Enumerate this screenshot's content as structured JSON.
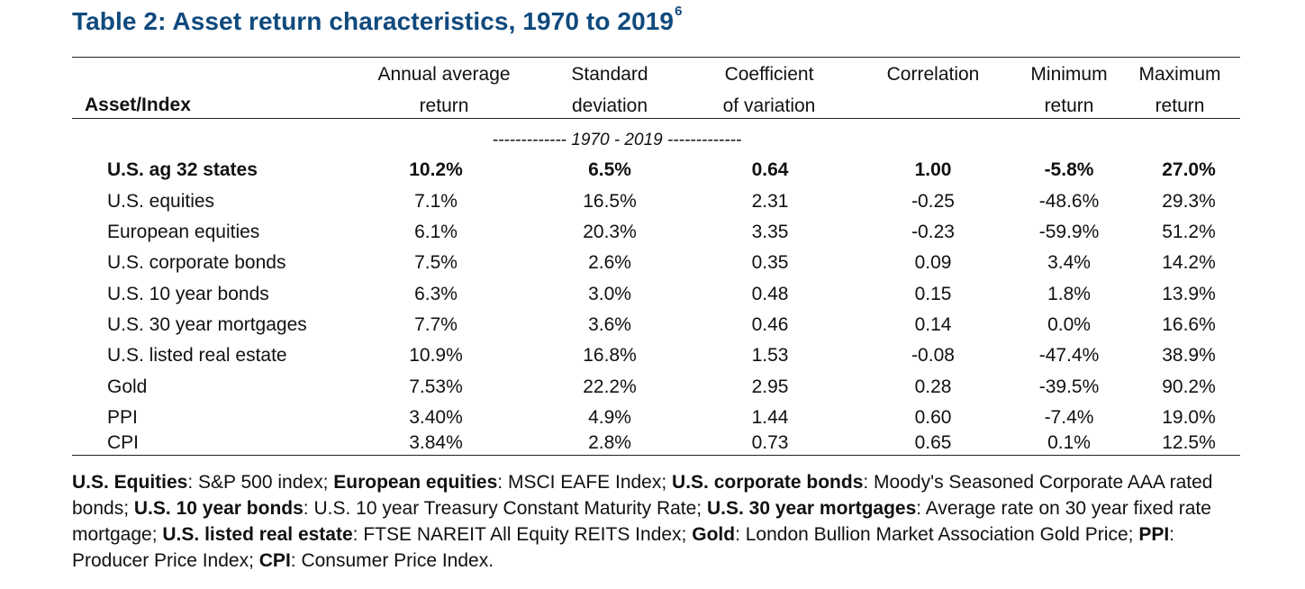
{
  "title": {
    "text": "Table 2: Asset return characteristics, 1970 to 2019",
    "footnote_mark": "6",
    "color": "#0f4a7d"
  },
  "header": {
    "asset": "Asset/Index",
    "columns": [
      {
        "line1": "Annual average",
        "line2": "return"
      },
      {
        "line1": "Standard",
        "line2": "deviation"
      },
      {
        "line1": "Coefficient",
        "line2": "of variation"
      },
      {
        "line1": "",
        "line2": "Correlation"
      },
      {
        "line1": "Minimum",
        "line2": "return"
      },
      {
        "line1": "Maximum",
        "line2": "return"
      }
    ]
  },
  "period_label": "------------- 1970 - 2019 -------------",
  "rows": [
    {
      "name": "U.S. ag 32 states",
      "values": [
        "10.2%",
        "6.5%",
        "0.64",
        "1.00",
        "-5.8%",
        "27.0%"
      ],
      "bold": true
    },
    {
      "name": "U.S. equities",
      "values": [
        "7.1%",
        "16.5%",
        "2.31",
        "-0.25",
        "-48.6%",
        "29.3%"
      ],
      "bold": false
    },
    {
      "name": "European equities",
      "values": [
        "6.1%",
        "20.3%",
        "3.35",
        "-0.23",
        "-59.9%",
        "51.2%"
      ],
      "bold": false
    },
    {
      "name": "U.S. corporate bonds",
      "values": [
        "7.5%",
        "2.6%",
        "0.35",
        "0.09",
        "3.4%",
        "14.2%"
      ],
      "bold": false
    },
    {
      "name": "U.S. 10 year bonds",
      "values": [
        "6.3%",
        "3.0%",
        "0.48",
        "0.15",
        "1.8%",
        "13.9%"
      ],
      "bold": false
    },
    {
      "name": "U.S. 30 year mortgages",
      "values": [
        "7.7%",
        "3.6%",
        "0.46",
        "0.14",
        "0.0%",
        "16.6%"
      ],
      "bold": false
    },
    {
      "name": "U.S. listed real estate",
      "values": [
        "10.9%",
        "16.8%",
        "1.53",
        "-0.08",
        "-47.4%",
        "38.9%"
      ],
      "bold": false
    },
    {
      "name": "Gold",
      "values": [
        "7.53%",
        "22.2%",
        "2.95",
        "0.28",
        "-39.5%",
        "90.2%"
      ],
      "bold": false
    },
    {
      "name": "PPI",
      "values": [
        "3.40%",
        "4.9%",
        "1.44",
        "0.60",
        "-7.4%",
        "19.0%"
      ],
      "bold": false
    },
    {
      "name": "CPI",
      "values": [
        "3.84%",
        "2.8%",
        "0.73",
        "0.65",
        "0.1%",
        "12.5%"
      ],
      "bold": false
    }
  ],
  "notes": [
    {
      "term": "U.S. Equities",
      "desc": ": S&P 500 index; "
    },
    {
      "term": "European equities",
      "desc": ": MSCI EAFE Index; "
    },
    {
      "term": "U.S. corporate bonds",
      "desc": ": Moody's Seasoned Corporate AAA rated bonds; "
    },
    {
      "term": "U.S. 10 year bonds",
      "desc": ": U.S. 10 year Treasury Constant Maturity Rate; "
    },
    {
      "term": "U.S. 30 year mortgages",
      "desc": ": Average rate on 30 year fixed rate mortgage; "
    },
    {
      "term": "U.S. listed real estate",
      "desc": ": FTSE NAREIT All Equity REITS Index; "
    },
    {
      "term": "Gold",
      "desc": ": London Bullion Market Association Gold Price; "
    },
    {
      "term": "PPI",
      "desc": ": Producer Price Index; "
    },
    {
      "term": "CPI",
      "desc": ": Consumer Price Index."
    }
  ]
}
